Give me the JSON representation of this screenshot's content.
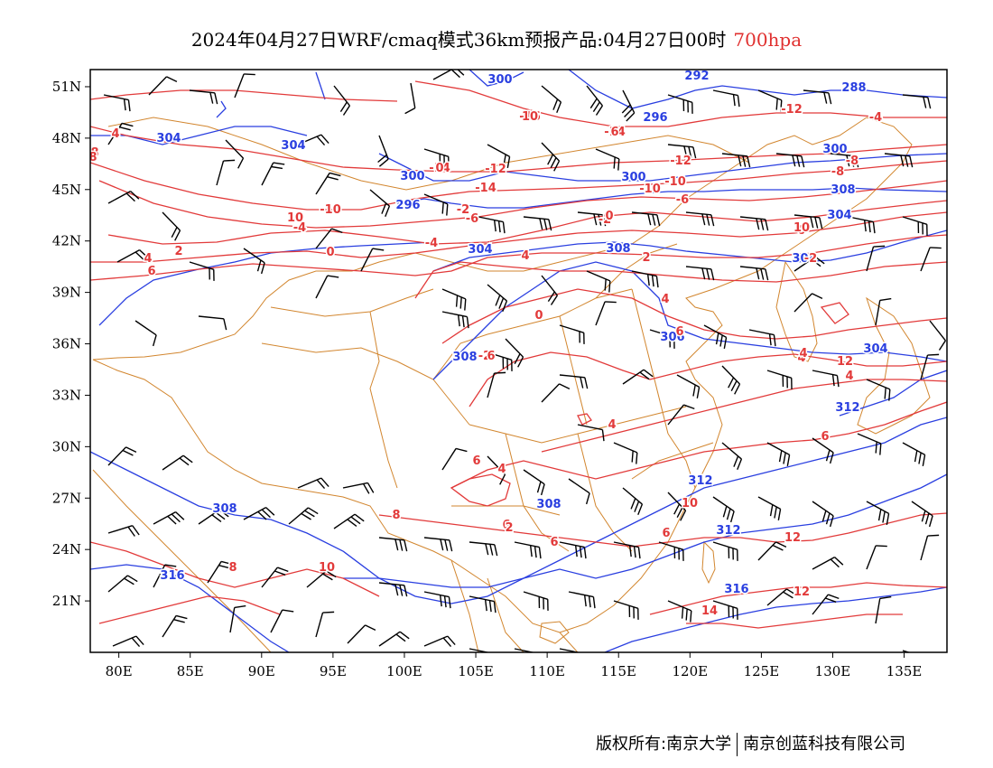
{
  "title": {
    "main": "2024年04月27日WRF/cmaq模式36km预报产品:04月27日00时",
    "level": "700hpa"
  },
  "map": {
    "lon_range": [
      78,
      138
    ],
    "lat_range": [
      18,
      52
    ],
    "lon_ticks": [
      "80E",
      "85E",
      "90E",
      "95E",
      "100E",
      "105E",
      "110E",
      "115E",
      "120E",
      "125E",
      "130E",
      "135E"
    ],
    "lat_ticks": [
      "51N",
      "48N",
      "45N",
      "42N",
      "39N",
      "36N",
      "33N",
      "30N",
      "27N",
      "24N",
      "21N"
    ],
    "layers": {
      "boundaries_color": "#d2862f",
      "geopotential_color": "#2a3fe0",
      "temperature_color": "#e23a3a",
      "wind_barb_color": "#000000"
    },
    "geopotential_labels": [
      "300",
      "292",
      "288",
      "304",
      "296",
      "304",
      "300",
      "300",
      "296",
      "300",
      "308",
      "304",
      "304",
      "308",
      "308",
      "308",
      "306",
      "304",
      "312",
      "308",
      "308",
      "312",
      "316",
      "312",
      "316"
    ],
    "temperature_labels": [
      "-16",
      "-14",
      "-14",
      "-12",
      "-12",
      "-4",
      "4",
      "-14",
      "-12",
      "-10",
      "-10",
      "-8",
      "-8",
      "-10",
      "-6",
      "10",
      "-6",
      "-4",
      "-4",
      "-2",
      "-2",
      "0",
      "0",
      "-2",
      "2",
      "4",
      "0",
      "4",
      "2",
      "6",
      "0",
      "4",
      "6",
      "-2",
      "4",
      "6",
      "4",
      "4",
      "6",
      "4",
      "6",
      "4",
      "8",
      "6",
      "6",
      "2",
      "8",
      "6",
      "10",
      "12",
      "10",
      "12",
      "14",
      "8",
      "12",
      "10",
      "8",
      "10",
      "6",
      "0"
    ]
  },
  "footer": {
    "left": "版权所有:南京大学",
    "right": "南京创蓝科技有限公司"
  }
}
